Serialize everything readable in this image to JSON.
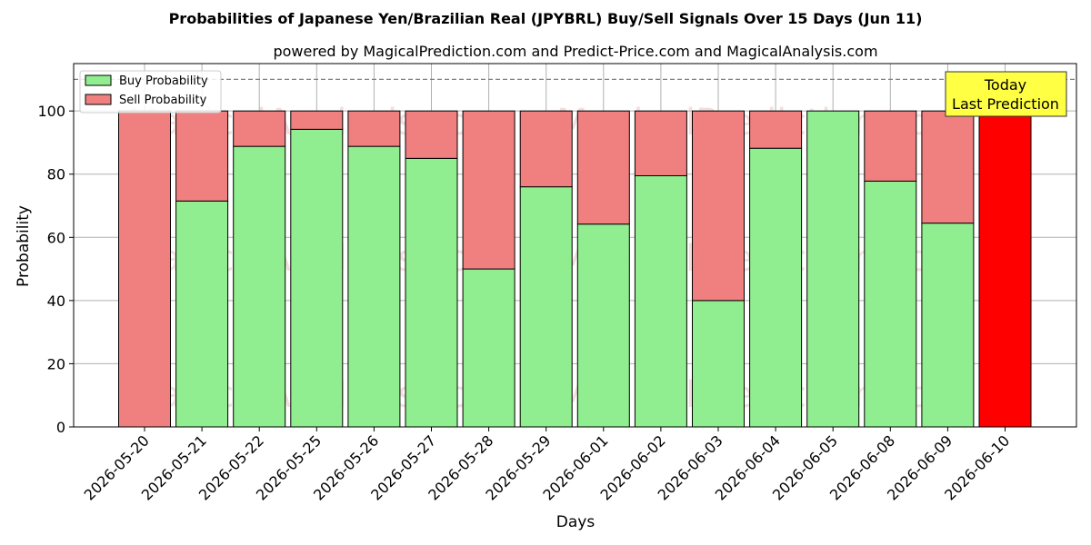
{
  "chart_data": {
    "type": "bar",
    "stacked": true,
    "title": "Probabilities of Japanese Yen/Brazilian Real (JPYBRL) Buy/Sell Signals Over 15 Days (Jun 11)",
    "subtitle": "powered by MagicalPrediction.com and Predict-Price.com and MagicalAnalysis.com",
    "xlabel": "Days",
    "ylabel": "Probability",
    "ylim": [
      0,
      115
    ],
    "yticks": [
      0,
      20,
      40,
      60,
      80,
      100
    ],
    "reference_line": 110,
    "grid": true,
    "legend_position": "top-left",
    "categories": [
      "2026-05-20",
      "2026-05-21",
      "2026-05-22",
      "2026-05-25",
      "2026-05-26",
      "2026-05-27",
      "2026-05-28",
      "2026-05-29",
      "2026-06-01",
      "2026-06-02",
      "2026-06-03",
      "2026-06-04",
      "2026-06-05",
      "2026-06-08",
      "2026-06-09",
      "2026-06-10"
    ],
    "series": [
      {
        "name": "Buy Probability",
        "color": "#90ee90",
        "values": [
          0,
          71.5,
          88.8,
          94.2,
          88.8,
          85,
          50,
          76,
          64.2,
          79.5,
          40,
          88.2,
          100,
          77.8,
          64.5,
          0
        ]
      },
      {
        "name": "Sell Probability",
        "color": "#f08080",
        "values": [
          100,
          28.5,
          11.2,
          5.8,
          11.2,
          15,
          50,
          24,
          35.8,
          20.5,
          60,
          11.8,
          0,
          22.2,
          35.5,
          100
        ]
      }
    ],
    "highlight": {
      "category": "2026-06-10",
      "color": "#ff0000",
      "label_lines": [
        "Today",
        "Last Prediction"
      ],
      "label_bg": "#ffff44"
    },
    "watermarks": [
      "MagicalAnalysis.com",
      "MagicalPrediction.com"
    ]
  }
}
